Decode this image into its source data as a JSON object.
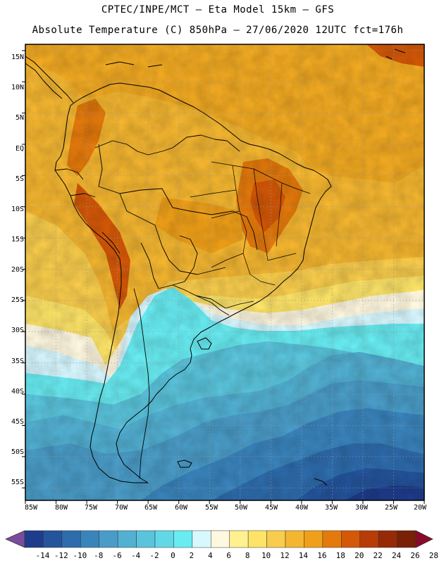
{
  "header": {
    "line1": "CPTEC/INPE/MCT –  Eta Model 15km – GFS",
    "line2": "Absolute Temperature (C) 850hPa – 27/06/2020 12UTC fct=176h"
  },
  "map": {
    "lat_labels": [
      "15N",
      "10N",
      "5N",
      "EQ",
      "5S",
      "10S",
      "15S",
      "20S",
      "25S",
      "30S",
      "35S",
      "40S",
      "45S",
      "50S",
      "55S"
    ],
    "lon_labels": [
      "85W",
      "80W",
      "75W",
      "70W",
      "65W",
      "60W",
      "55W",
      "50W",
      "45W",
      "40W",
      "35W",
      "30W",
      "25W",
      "20W"
    ],
    "extent": {
      "lon_min": -85,
      "lon_max": -20,
      "lat_min": -57,
      "lat_max": 16
    }
  },
  "colorbar": {
    "labels": [
      "-14",
      "-12",
      "-10",
      "-8",
      "-6",
      "-4",
      "-2",
      "0",
      "2",
      "4",
      "6",
      "8",
      "10",
      "12",
      "14",
      "16",
      "18",
      "20",
      "22",
      "24",
      "26",
      "28"
    ],
    "colors": [
      "#7a4c9c",
      "#1e3c8c",
      "#24549c",
      "#2e6cac",
      "#3a84bc",
      "#4a9cc8",
      "#52b0d2",
      "#5ac4dc",
      "#62d8e6",
      "#68ecf2",
      "#d8f8ff",
      "#fff8e0",
      "#fff090",
      "#fde468",
      "#f8cc4c",
      "#f4b630",
      "#f0a018",
      "#e47a0c",
      "#d45808",
      "#b83c06",
      "#962a06",
      "#7a2006",
      "#8a0a2a"
    ]
  }
}
